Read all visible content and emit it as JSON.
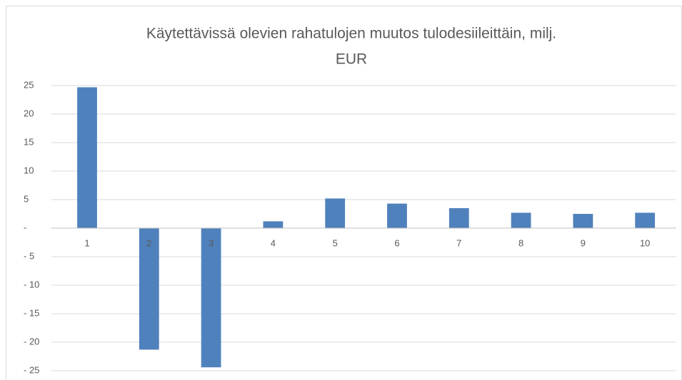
{
  "chart_data": {
    "type": "bar",
    "title": [
      "Käytettävissä olevien rahatulojen muutos tulodesiileittäin, milj.",
      "EUR"
    ],
    "categories": [
      "1",
      "2",
      "3",
      "4",
      "5",
      "6",
      "7",
      "8",
      "9",
      "10"
    ],
    "values": [
      24.7,
      -21.3,
      -24.4,
      1.2,
      5.2,
      4.3,
      3.5,
      2.7,
      2.5,
      2.7
    ],
    "color": "#4f81bd",
    "ylim": [
      -25,
      25
    ],
    "yticks": [
      25,
      20,
      15,
      10,
      5,
      {
        "value": 0,
        "label": "-"
      },
      {
        "value": -5,
        "label": "- 5"
      },
      {
        "value": -10,
        "label": "- 10"
      },
      {
        "value": -15,
        "label": "- 15"
      },
      {
        "value": -20,
        "label": "- 20"
      },
      {
        "value": -25,
        "label": "- 25"
      }
    ],
    "grid": true
  }
}
